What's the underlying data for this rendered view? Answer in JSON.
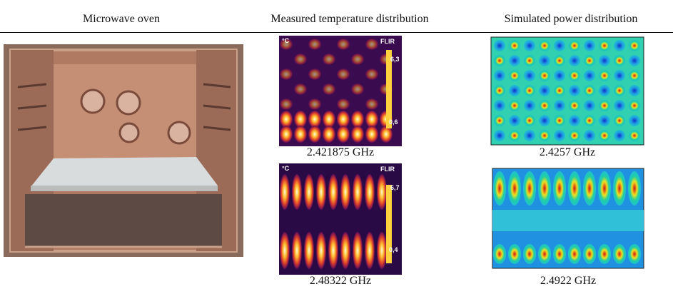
{
  "header": {
    "columns": [
      "Microwave oven",
      "Measured temperature distribution",
      "Simulated power distribution"
    ]
  },
  "measured": [
    {
      "caption": "2.421875 GHz",
      "unit": "°C",
      "brand": "FLIR",
      "scale_max": "6,3",
      "scale_min": "0,6"
    },
    {
      "caption": "2.48322 GHz",
      "unit": "°C",
      "brand": "FLIR",
      "scale_max": "6,7",
      "scale_min": "0,4"
    }
  ],
  "simulated": [
    {
      "caption": "2.4257 GHz"
    },
    {
      "caption": "2.4922 GHz"
    }
  ]
}
